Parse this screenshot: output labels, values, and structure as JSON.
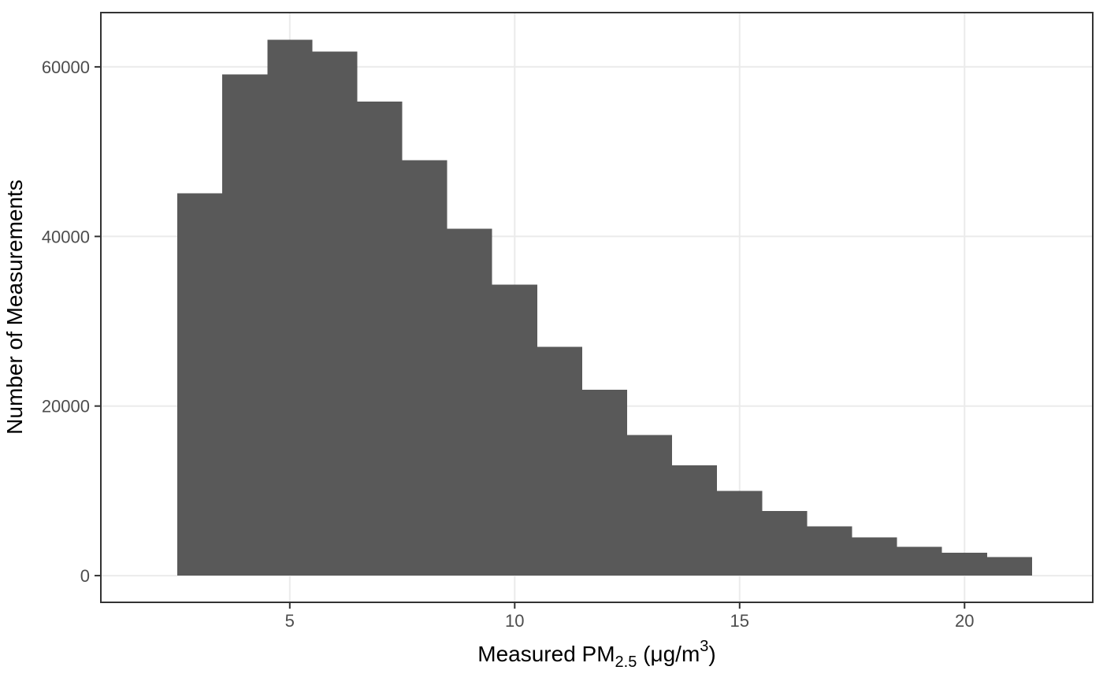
{
  "chart_data": {
    "type": "bar",
    "subtype": "histogram",
    "title": "",
    "xlabel_plain": "Measured PM2.5 (μg/m3)",
    "xlabel_parts": [
      {
        "t": "Measured PM",
        "shift": "none"
      },
      {
        "t": "2.5",
        "shift": "sub"
      },
      {
        "t": " (μg/m",
        "shift": "none"
      },
      {
        "t": "3",
        "shift": "sup"
      },
      {
        "t": ")",
        "shift": "none"
      }
    ],
    "ylabel": "Number of Measurements",
    "bin_width": 1,
    "bin_edges": [
      2.5,
      3.5,
      4.5,
      5.5,
      6.5,
      7.5,
      8.5,
      9.5,
      10.5,
      11.5,
      12.5,
      13.5,
      14.5,
      15.5,
      16.5,
      17.5,
      18.5,
      19.5,
      20.5,
      21.5
    ],
    "values": [
      45100,
      59100,
      63200,
      61800,
      55900,
      49000,
      40900,
      34300,
      27000,
      21900,
      16600,
      13000,
      10000,
      7600,
      5800,
      4500,
      3400,
      2700,
      2200
    ],
    "x_ticks": [
      5,
      10,
      15,
      20
    ],
    "x_tick_labels": [
      "5",
      "10",
      "15",
      "20"
    ],
    "y_ticks": [
      0,
      20000,
      40000,
      60000
    ],
    "y_tick_labels": [
      "0",
      "20000",
      "40000",
      "60000"
    ],
    "xlim": [
      0.8,
      22.85
    ],
    "ylim": [
      -3150,
      66400
    ],
    "grid": "major-only",
    "legend": "none",
    "style": {
      "bar_fill": "#595959",
      "grid_color": "#ebebeb",
      "panel_border_color": "#333333",
      "tick_mark_color": "#333333",
      "tick_label_color": "#4d4d4d",
      "axis_title_color": "#000000",
      "background": "#ffffff"
    }
  }
}
